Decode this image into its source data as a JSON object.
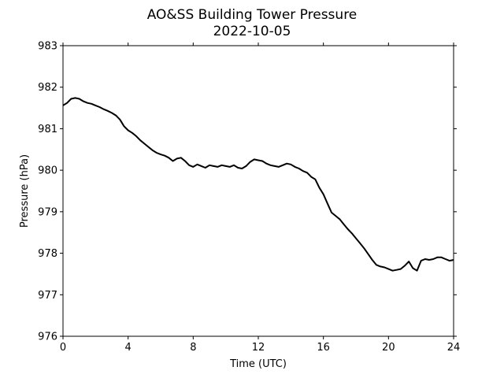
{
  "chart_data": {
    "type": "line",
    "title": "AO&SS Building Tower Pressure",
    "subtitle": "2022-10-05",
    "xlabel": "Time (UTC)",
    "ylabel": "Pressure (hPa)",
    "xlim": [
      0,
      24
    ],
    "ylim": [
      976,
      983
    ],
    "xticks": [
      "0",
      "4",
      "8",
      "12",
      "16",
      "20",
      "24"
    ],
    "yticks": [
      "976",
      "977",
      "978",
      "979",
      "980",
      "981",
      "982",
      "983"
    ],
    "grid": false,
    "series_color": "#000000",
    "series": [
      {
        "x": [
          0,
          0.25,
          0.5,
          0.75,
          1.0,
          1.25,
          1.5,
          1.75,
          2.0,
          2.25,
          2.5,
          2.75,
          3.0,
          3.25,
          3.5,
          3.75,
          4.0,
          4.25,
          4.5,
          4.75,
          5.0,
          5.25,
          5.5,
          5.75,
          6.0,
          6.25,
          6.5,
          6.75,
          7.0,
          7.25,
          7.5,
          7.75,
          8.0,
          8.25,
          8.5,
          8.75,
          9.0,
          9.25,
          9.5,
          9.75,
          10.0,
          10.25,
          10.5,
          10.75,
          11.0,
          11.25,
          11.5,
          11.75,
          12.0,
          12.25,
          12.5,
          12.75,
          13.0,
          13.25,
          13.5,
          13.75,
          14.0,
          14.25,
          14.5,
          14.75,
          15.0,
          15.25,
          15.5,
          15.75,
          16.0,
          16.25,
          16.5,
          16.75,
          17.0,
          17.25,
          17.5,
          17.75,
          18.0,
          18.25,
          18.5,
          18.75,
          19.0,
          19.25,
          19.5,
          19.75,
          20.0,
          20.25,
          20.5,
          20.75,
          21.0,
          21.25,
          21.5,
          21.75,
          22.0,
          22.25,
          22.5,
          22.75,
          23.0,
          23.25,
          23.5,
          23.75,
          24.0
        ],
        "y": [
          981.56,
          981.62,
          981.72,
          981.74,
          981.72,
          981.66,
          981.62,
          981.6,
          981.56,
          981.52,
          981.47,
          981.43,
          981.38,
          981.32,
          981.22,
          981.06,
          980.96,
          980.9,
          980.82,
          980.72,
          980.64,
          980.56,
          980.48,
          980.42,
          980.38,
          980.35,
          980.3,
          980.22,
          980.28,
          980.3,
          980.22,
          980.12,
          980.08,
          980.14,
          980.1,
          980.06,
          980.12,
          980.1,
          980.08,
          980.12,
          980.1,
          980.08,
          980.12,
          980.06,
          980.04,
          980.1,
          980.2,
          980.26,
          980.24,
          980.22,
          980.16,
          980.12,
          980.1,
          980.08,
          980.12,
          980.16,
          980.14,
          980.08,
          980.04,
          979.98,
          979.94,
          979.84,
          979.78,
          979.58,
          979.42,
          979.2,
          978.98,
          978.9,
          978.82,
          978.7,
          978.58,
          978.48,
          978.36,
          978.24,
          978.12,
          977.98,
          977.84,
          977.72,
          977.68,
          977.66,
          977.62,
          977.58,
          977.6,
          977.62,
          977.7,
          977.8,
          977.64,
          977.58,
          977.82,
          977.86,
          977.84,
          977.86,
          977.9,
          977.9,
          977.86,
          977.82,
          977.84
        ]
      }
    ]
  }
}
